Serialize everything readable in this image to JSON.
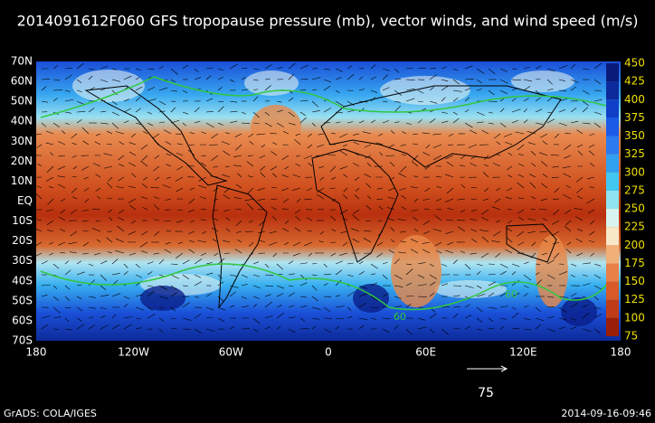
{
  "title": "2014091612F060 GFS tropopause pressure (mb), vector winds, and wind speed (m/s)",
  "latitude_labels": [
    "70N",
    "60N",
    "50N",
    "40N",
    "30N",
    "20N",
    "10N",
    "EQ",
    "10S",
    "20S",
    "30S",
    "40S",
    "50S",
    "60S",
    "70S"
  ],
  "longitude_labels": [
    "180",
    "120W",
    "60W",
    "0",
    "60E",
    "120E",
    "180"
  ],
  "colorbar": {
    "labels": [
      "450",
      "425",
      "400",
      "375",
      "350",
      "325",
      "300",
      "275",
      "250",
      "225",
      "200",
      "175",
      "150",
      "125",
      "100",
      "75"
    ],
    "colors": [
      "#0a1a78",
      "#0c2a9c",
      "#1040c8",
      "#1a5ae6",
      "#2a7af0",
      "#30a0f0",
      "#40c8f0",
      "#8ee4f0",
      "#d8f4f0",
      "#f8e8c8",
      "#f0b078",
      "#e88048",
      "#d85a28",
      "#c03c18",
      "#9a1e08"
    ]
  },
  "contour_labels": [
    "60",
    "60"
  ],
  "reference_vector": {
    "label": "75"
  },
  "footer": {
    "left": "GrADS: COLA/IGES",
    "right": "2014-09-16-09:46"
  }
}
